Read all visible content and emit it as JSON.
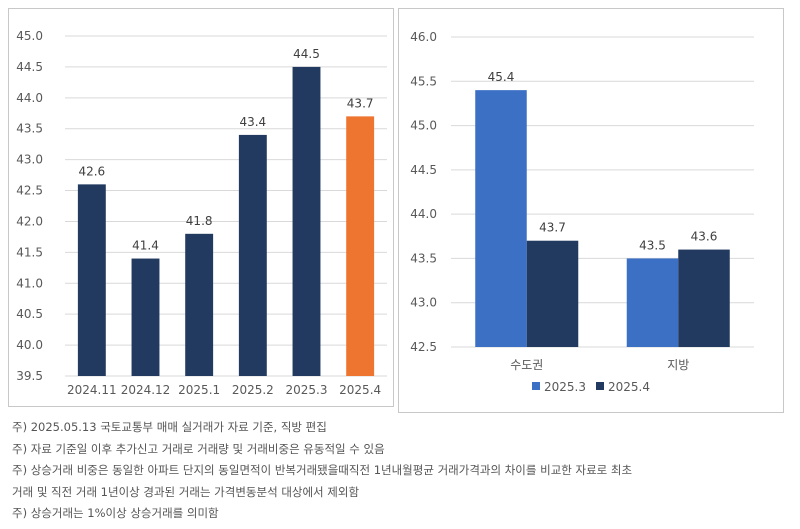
{
  "chart_data": [
    {
      "type": "bar",
      "categories": [
        "2024.11",
        "2024.12",
        "2025.1",
        "2025.2",
        "2025.3",
        "2025.4"
      ],
      "values": [
        42.6,
        41.4,
        41.8,
        43.4,
        44.5,
        43.7
      ],
      "data_labels": [
        "42.6",
        "41.4",
        "41.8",
        "43.4",
        "44.5",
        "43.7"
      ],
      "bar_colors": [
        "#223a60",
        "#223a60",
        "#223a60",
        "#223a60",
        "#223a60",
        "#ed7530"
      ],
      "ylim": [
        39.5,
        45.0
      ],
      "yticks": [
        "45.0",
        "44.5",
        "44.0",
        "43.5",
        "43.0",
        "42.5",
        "42.0",
        "41.5",
        "41.0",
        "40.5",
        "40.0",
        "39.5"
      ],
      "grid": true,
      "legend": "none"
    },
    {
      "type": "bar",
      "categories": [
        "수도권",
        "지방"
      ],
      "series": [
        {
          "name": "2025.3",
          "color": "#3b70c4",
          "values": [
            45.4,
            43.5
          ],
          "data_labels": [
            "45.4",
            "43.5"
          ]
        },
        {
          "name": "2025.4",
          "color": "#223a60",
          "values": [
            43.7,
            43.6
          ],
          "data_labels": [
            "43.7",
            "43.6"
          ]
        }
      ],
      "ylim": [
        42.5,
        46.0
      ],
      "yticks": [
        "46.0",
        "45.5",
        "45.0",
        "44.5",
        "44.0",
        "43.5",
        "43.0",
        "42.5"
      ],
      "grid": true,
      "legend": "bottom"
    }
  ],
  "notes": [
    "주) 2025.05.13 국토교통부 매매 실거래가 자료 기준, 직방 편집",
    "주) 자료 기준일 이후 추가신고 거래로 거래량 및 거래비중은 유동적일 수 있음",
    "주) 상승거래 비중은 동일한 아파트 단지의 동일면적이 반복거래됐을때직전 1년내월평균 거래가격과의 차이를 비교한 자료로 최초",
    "거래 및 직전 거래 1년이상 경과된 거래는 가격변동분석 대상에서 제외함",
    "주) 상승거래는 1%이상 상승거래를 의미함"
  ]
}
